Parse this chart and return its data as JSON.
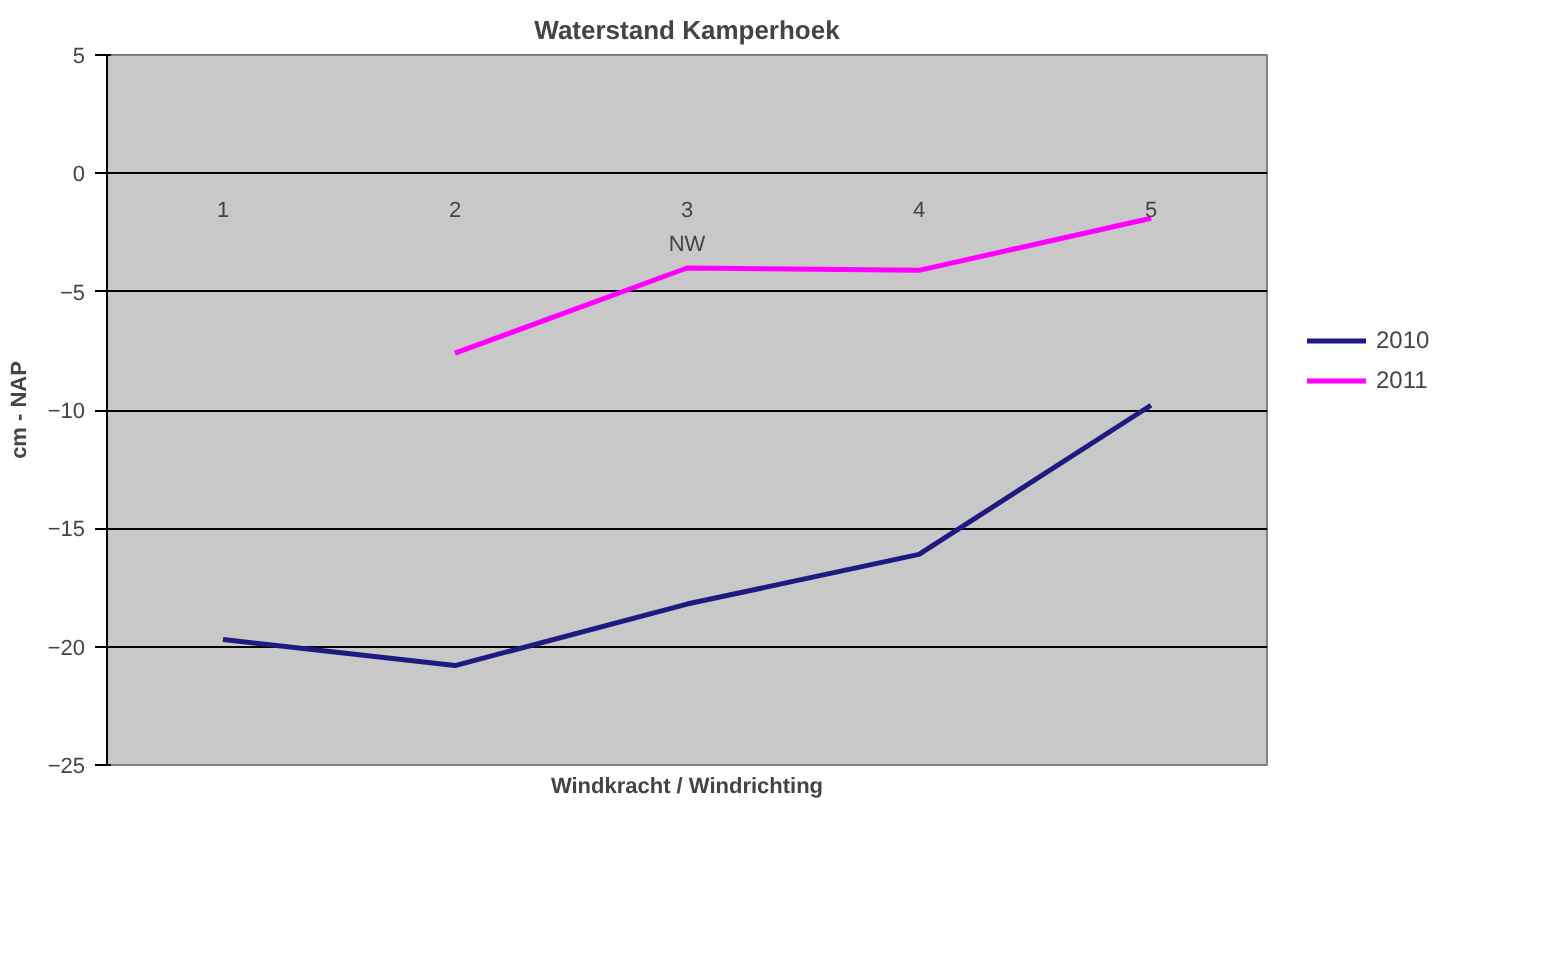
{
  "chart_data": {
    "type": "line",
    "title": "Waterstand Kamperhoek",
    "xlabel": "Windkracht / Windrichting",
    "ylabel": "cm - NAP",
    "categories": [
      "1",
      "2",
      "3",
      "4",
      "5"
    ],
    "series": [
      {
        "name": "2010",
        "color": "#1f1a80",
        "values": [
          -19.7,
          -20.8,
          -18.2,
          -16.1,
          -9.8
        ]
      },
      {
        "name": "2011",
        "color": "#ff00ff",
        "values": [
          null,
          -7.6,
          -4.0,
          -4.1,
          -1.9
        ]
      }
    ],
    "ylim": [
      -25,
      5
    ],
    "yticks": [
      -25,
      -20,
      -15,
      -10,
      -5,
      0,
      5
    ],
    "grid": "y",
    "legend": "right",
    "marker": "none",
    "line_style": "solid",
    "annotations": [
      "NW"
    ]
  }
}
